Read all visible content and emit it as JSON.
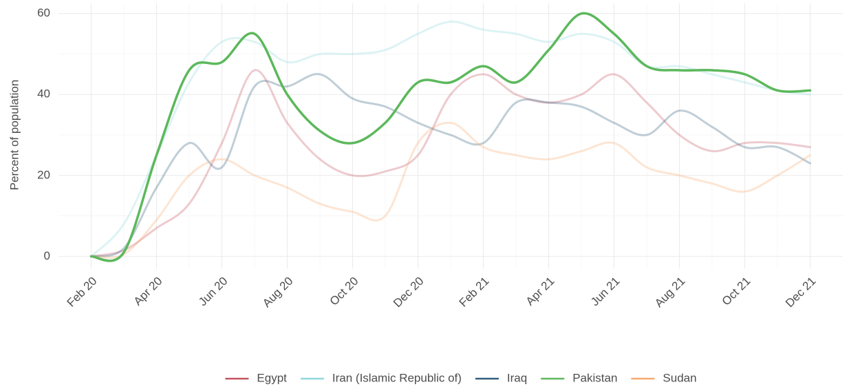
{
  "chart_data": {
    "type": "line",
    "ylabel": "Percent of population",
    "x": [
      "2020-02",
      "2020-03",
      "2020-04",
      "2020-05",
      "2020-06",
      "2020-07",
      "2020-08",
      "2020-09",
      "2020-10",
      "2020-11",
      "2020-12",
      "2021-01",
      "2021-02",
      "2021-03",
      "2021-04",
      "2021-05",
      "2021-06",
      "2021-07",
      "2021-08",
      "2021-09",
      "2021-10",
      "2021-11",
      "2021-12"
    ],
    "xlim": [
      "2020-01",
      "2022-01"
    ],
    "xticks": [
      {
        "value": "2020-02",
        "label": "Feb 20"
      },
      {
        "value": "2020-04",
        "label": "Apr 20"
      },
      {
        "value": "2020-06",
        "label": "Jun 20"
      },
      {
        "value": "2020-08",
        "label": "Aug 20"
      },
      {
        "value": "2020-10",
        "label": "Oct 20"
      },
      {
        "value": "2020-12",
        "label": "Dec 20"
      },
      {
        "value": "2021-02",
        "label": "Feb 21"
      },
      {
        "value": "2021-04",
        "label": "Apr 21"
      },
      {
        "value": "2021-06",
        "label": "Jun 21"
      },
      {
        "value": "2021-08",
        "label": "Aug 21"
      },
      {
        "value": "2021-10",
        "label": "Oct 21"
      },
      {
        "value": "2021-12",
        "label": "Dec 21"
      }
    ],
    "ylim": [
      -3,
      62.5
    ],
    "yticks": [
      0,
      20,
      40,
      60
    ],
    "grid": true,
    "legend": "bottom",
    "series": [
      {
        "name": "Egypt",
        "color": "#c3545f",
        "highlighted": false,
        "values": [
          0,
          1.5,
          7,
          13,
          28,
          46,
          33,
          24,
          20,
          21,
          25,
          40,
          45,
          40,
          38,
          40,
          45,
          38,
          30,
          26,
          28,
          28,
          27
        ]
      },
      {
        "name": "Iran (Islamic Republic of)",
        "color": "#8ed8db",
        "highlighted": false,
        "values": [
          0,
          8,
          25,
          43,
          53,
          53,
          48,
          50,
          50,
          51,
          55,
          58,
          56,
          55,
          53,
          55,
          53,
          47,
          47,
          45,
          43,
          41,
          40
        ]
      },
      {
        "name": "Iraq",
        "color": "#2f5d7c",
        "highlighted": false,
        "values": [
          0,
          2,
          17,
          28,
          22,
          42,
          42,
          45,
          39,
          37,
          33,
          30,
          28,
          38,
          38,
          37,
          33,
          30,
          36,
          32,
          27,
          27,
          23
        ]
      },
      {
        "name": "Pakistan",
        "color": "#5cb85c",
        "highlighted": true,
        "values": [
          0,
          1,
          25,
          46,
          48,
          55,
          40,
          31,
          28,
          33,
          43,
          43,
          47,
          43,
          51,
          60,
          55,
          47,
          46,
          46,
          45,
          41,
          41
        ]
      },
      {
        "name": "Sudan",
        "color": "#f7a86e",
        "highlighted": false,
        "values": [
          0,
          0.5,
          9,
          20,
          24,
          20,
          17,
          13,
          11,
          10,
          28,
          33,
          27,
          25,
          24,
          26,
          28,
          22,
          20,
          18,
          16,
          20,
          25
        ]
      }
    ]
  }
}
